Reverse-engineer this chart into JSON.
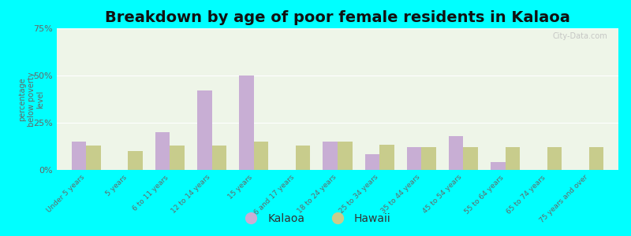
{
  "title": "Breakdown by age of poor female residents in Kalaoa",
  "ylabel": "percentage\nbelow poverty\nlevel",
  "categories": [
    "Under 5 years",
    "5 years",
    "6 to 11 years",
    "12 to 14 years",
    "15 years",
    "16 and 17 years",
    "18 to 24 years",
    "25 to 34 years",
    "35 to 44 years",
    "45 to 54 years",
    "55 to 64 years",
    "65 to 74 years",
    "75 years and over"
  ],
  "kalaoa": [
    15.0,
    0.0,
    20.0,
    42.0,
    50.0,
    0.0,
    15.0,
    8.5,
    12.0,
    18.0,
    4.0,
    0.0,
    0.0
  ],
  "hawaii": [
    13.0,
    10.0,
    13.0,
    13.0,
    15.0,
    13.0,
    15.0,
    13.5,
    12.0,
    12.0,
    12.0,
    12.0,
    12.0
  ],
  "kalaoa_color": "#c8aed4",
  "hawaii_color": "#c8cc8c",
  "ylim": [
    0,
    75
  ],
  "yticks": [
    0,
    25,
    50,
    75
  ],
  "ytick_labels": [
    "0%",
    "25%",
    "50%",
    "75%"
  ],
  "title_fontsize": 14,
  "axis_bg_color": "#eef5e8",
  "outer_bg_color": "#00ffff",
  "bar_width": 0.35,
  "legend_kalaoa": "Kalaoa",
  "legend_hawaii": "Hawaii"
}
